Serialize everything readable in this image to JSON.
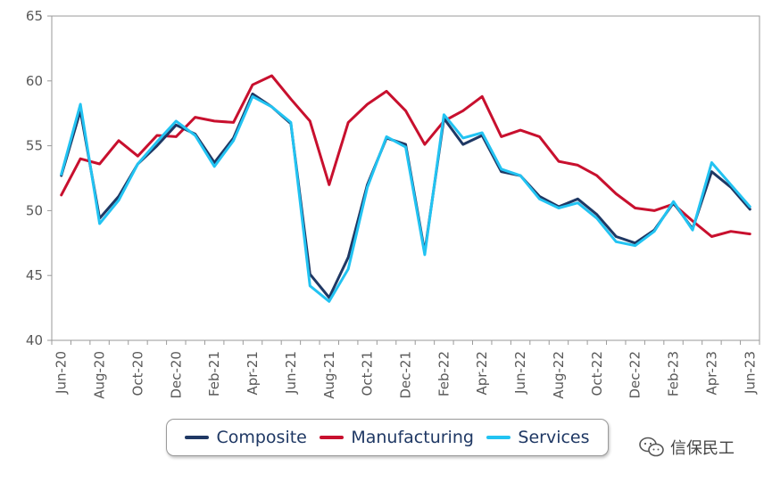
{
  "chart_data": {
    "type": "line",
    "title": "",
    "xlabel": "",
    "ylabel": "",
    "ylim": [
      40,
      65
    ],
    "yticks": [
      40,
      45,
      50,
      55,
      60,
      65
    ],
    "grid": false,
    "legend_position": "bottom",
    "x": [
      "Jun-20",
      "Jul-20",
      "Aug-20",
      "Sep-20",
      "Oct-20",
      "Nov-20",
      "Dec-20",
      "Jan-21",
      "Feb-21",
      "Mar-21",
      "Apr-21",
      "May-21",
      "Jun-21",
      "Jul-21",
      "Aug-21",
      "Sep-21",
      "Oct-21",
      "Nov-21",
      "Dec-21",
      "Jan-22",
      "Feb-22",
      "Mar-22",
      "Apr-22",
      "May-22",
      "Jun-22",
      "Jul-22",
      "Aug-22",
      "Sep-22",
      "Oct-22",
      "Nov-22",
      "Dec-22",
      "Jan-23",
      "Feb-23",
      "Mar-23",
      "Apr-23",
      "May-23",
      "Jun-23"
    ],
    "x_tick_labels": [
      "Jun-20",
      "Aug-20",
      "Oct-20",
      "Dec-20",
      "Feb-21",
      "Apr-21",
      "Jun-21",
      "Aug-21",
      "Oct-21",
      "Dec-21",
      "Feb-22",
      "Apr-22",
      "Jun-22",
      "Aug-22",
      "Oct-22",
      "Dec-22",
      "Feb-23",
      "Apr-23",
      "Jun-23"
    ],
    "series": [
      {
        "name": "Composite",
        "color": "#1f3864",
        "values": [
          52.7,
          57.7,
          49.4,
          51.1,
          53.6,
          55.0,
          56.6,
          55.9,
          53.7,
          55.6,
          59.0,
          58.0,
          56.7,
          45.1,
          43.3,
          46.4,
          52.0,
          55.6,
          55.1,
          46.8,
          57.1,
          55.1,
          55.8,
          53.0,
          52.7,
          51.1,
          50.3,
          50.9,
          49.7,
          48.0,
          47.5,
          48.5,
          50.6,
          48.6,
          53.0,
          51.8,
          50.1
        ]
      },
      {
        "name": "Manufacturing",
        "color": "#c8102e",
        "values": [
          51.2,
          54.0,
          53.6,
          55.4,
          54.2,
          55.8,
          55.7,
          57.2,
          56.9,
          56.8,
          59.7,
          60.4,
          58.6,
          56.9,
          52.0,
          56.8,
          58.2,
          59.2,
          57.7,
          55.1,
          56.9,
          57.7,
          58.8,
          55.7,
          56.2,
          55.7,
          53.8,
          53.5,
          52.7,
          51.3,
          50.2,
          50.0,
          50.5,
          49.2,
          48.0,
          48.4,
          48.2
        ]
      },
      {
        "name": "Services",
        "color": "#22c3f2",
        "values": [
          52.8,
          58.2,
          49.0,
          50.8,
          53.6,
          55.3,
          56.9,
          55.8,
          53.4,
          55.4,
          58.8,
          58.0,
          56.8,
          44.2,
          43.0,
          45.5,
          51.8,
          55.7,
          54.9,
          46.6,
          57.4,
          55.6,
          56.0,
          53.2,
          52.7,
          50.9,
          50.2,
          50.6,
          49.4,
          47.6,
          47.3,
          48.4,
          50.7,
          48.5,
          53.7,
          52.0,
          50.3
        ]
      }
    ]
  },
  "watermark": {
    "text": "信保民工",
    "icon": "wechat-icon"
  }
}
